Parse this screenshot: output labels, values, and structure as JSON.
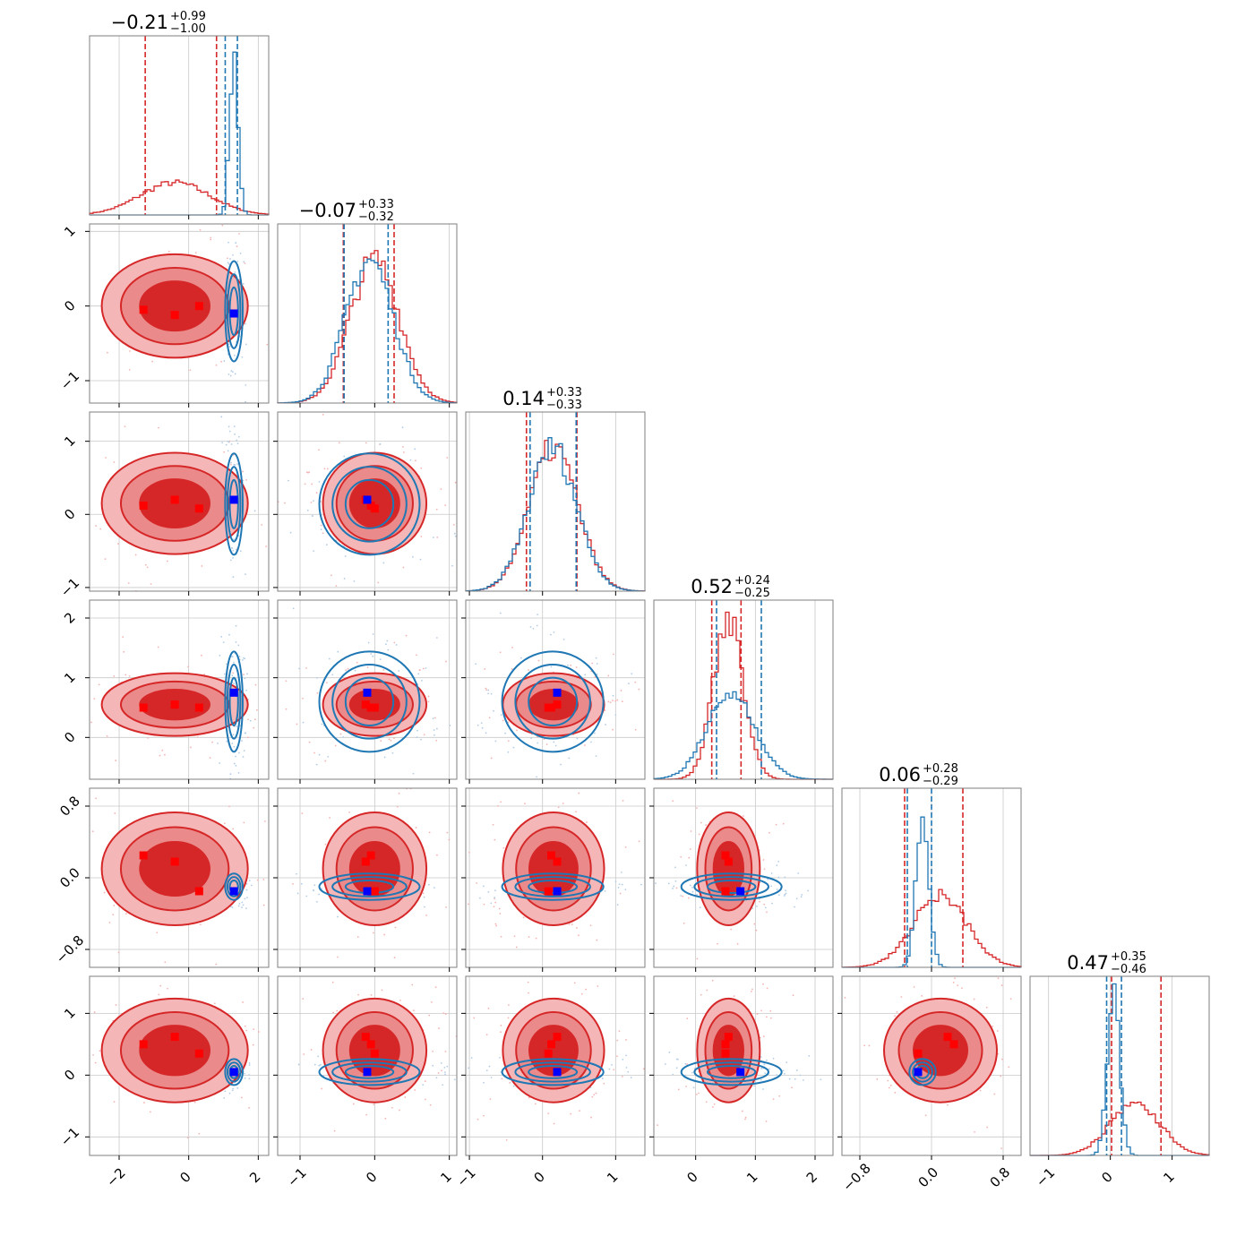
{
  "colors": {
    "series_a": "#d62728",
    "series_b": "#1f77b4",
    "truth_a": "#ff0000",
    "truth_b": "#0000ff",
    "grid": "#c8c8c8",
    "frame": "#7f7f7f"
  },
  "chart_data": {
    "type": "corner",
    "n_params": 6,
    "series": [
      {
        "color": "#d62728",
        "filled_contours": true,
        "means": [
          -0.4,
          0.0,
          0.15,
          0.55,
          0.1,
          0.4
        ],
        "sigmas": [
          1.0,
          0.33,
          0.33,
          0.25,
          0.3,
          0.4
        ],
        "markers": [
          [
            -1.3,
            -0.05,
            0.12,
            0.5,
            0.25,
            0.5
          ],
          [
            -0.4,
            -0.12,
            0.2,
            0.55,
            0.18,
            0.62
          ],
          [
            0.3,
            0.0,
            0.08,
            0.5,
            -0.15,
            0.35
          ]
        ],
        "quantiles": [
          [
            -1.25,
            0.8
          ],
          [
            -0.42,
            0.26
          ],
          [
            -0.22,
            0.47
          ],
          [
            0.27,
            0.76
          ],
          [
            -0.3,
            0.35
          ],
          [
            0.02,
            0.82
          ]
        ]
      },
      {
        "color": "#1f77b4",
        "filled_contours": false,
        "means": [
          1.3,
          -0.07,
          0.14,
          0.6,
          -0.1,
          0.05
        ],
        "sigmas": [
          0.12,
          0.32,
          0.33,
          0.4,
          0.07,
          0.1
        ],
        "markers": [
          [
            1.3,
            -0.1,
            0.2,
            0.75,
            -0.15,
            0.05
          ]
        ],
        "quantiles": [
          [
            1.05,
            1.4
          ],
          [
            -0.41,
            0.18
          ],
          [
            -0.17,
            0.46
          ],
          [
            0.35,
            1.1
          ],
          [
            -0.27,
            0.0
          ],
          [
            -0.06,
            0.18
          ]
        ]
      }
    ],
    "ranges": [
      [
        -2.85,
        2.3
      ],
      [
        -1.3,
        1.1
      ],
      [
        -1.05,
        1.4
      ],
      [
        -0.7,
        2.3
      ],
      [
        -1.0,
        1.0
      ],
      [
        -1.3,
        1.6
      ]
    ],
    "ticks": [
      [
        -2,
        0,
        2
      ],
      [
        -1,
        0,
        1
      ],
      [
        -1,
        0,
        1
      ],
      [
        0,
        1,
        2
      ],
      [
        -0.8,
        0.0,
        0.8
      ],
      [
        -1,
        0,
        1
      ]
    ],
    "tick_labels": [
      [
        "−2",
        "0",
        "2"
      ],
      [
        "−1",
        "0",
        "1"
      ],
      [
        "−1",
        "0",
        "1"
      ],
      [
        "0",
        "1",
        "2"
      ],
      [
        "−0.8",
        "0.0",
        "0.8"
      ],
      [
        "−1",
        "0",
        "1"
      ]
    ],
    "titles": [
      {
        "value": "−0.21",
        "upper": "+0.99",
        "lower": "−1.00"
      },
      {
        "value": "−0.07",
        "upper": "+0.33",
        "lower": "−0.32"
      },
      {
        "value": "0.14",
        "upper": "+0.33",
        "lower": "−0.33"
      },
      {
        "value": "0.52",
        "upper": "+0.24",
        "lower": "−0.25"
      },
      {
        "value": "0.06",
        "upper": "+0.28",
        "lower": "−0.29"
      },
      {
        "value": "0.47",
        "upper": "+0.35",
        "lower": "−0.46"
      }
    ],
    "grid": true,
    "legend": "none"
  }
}
